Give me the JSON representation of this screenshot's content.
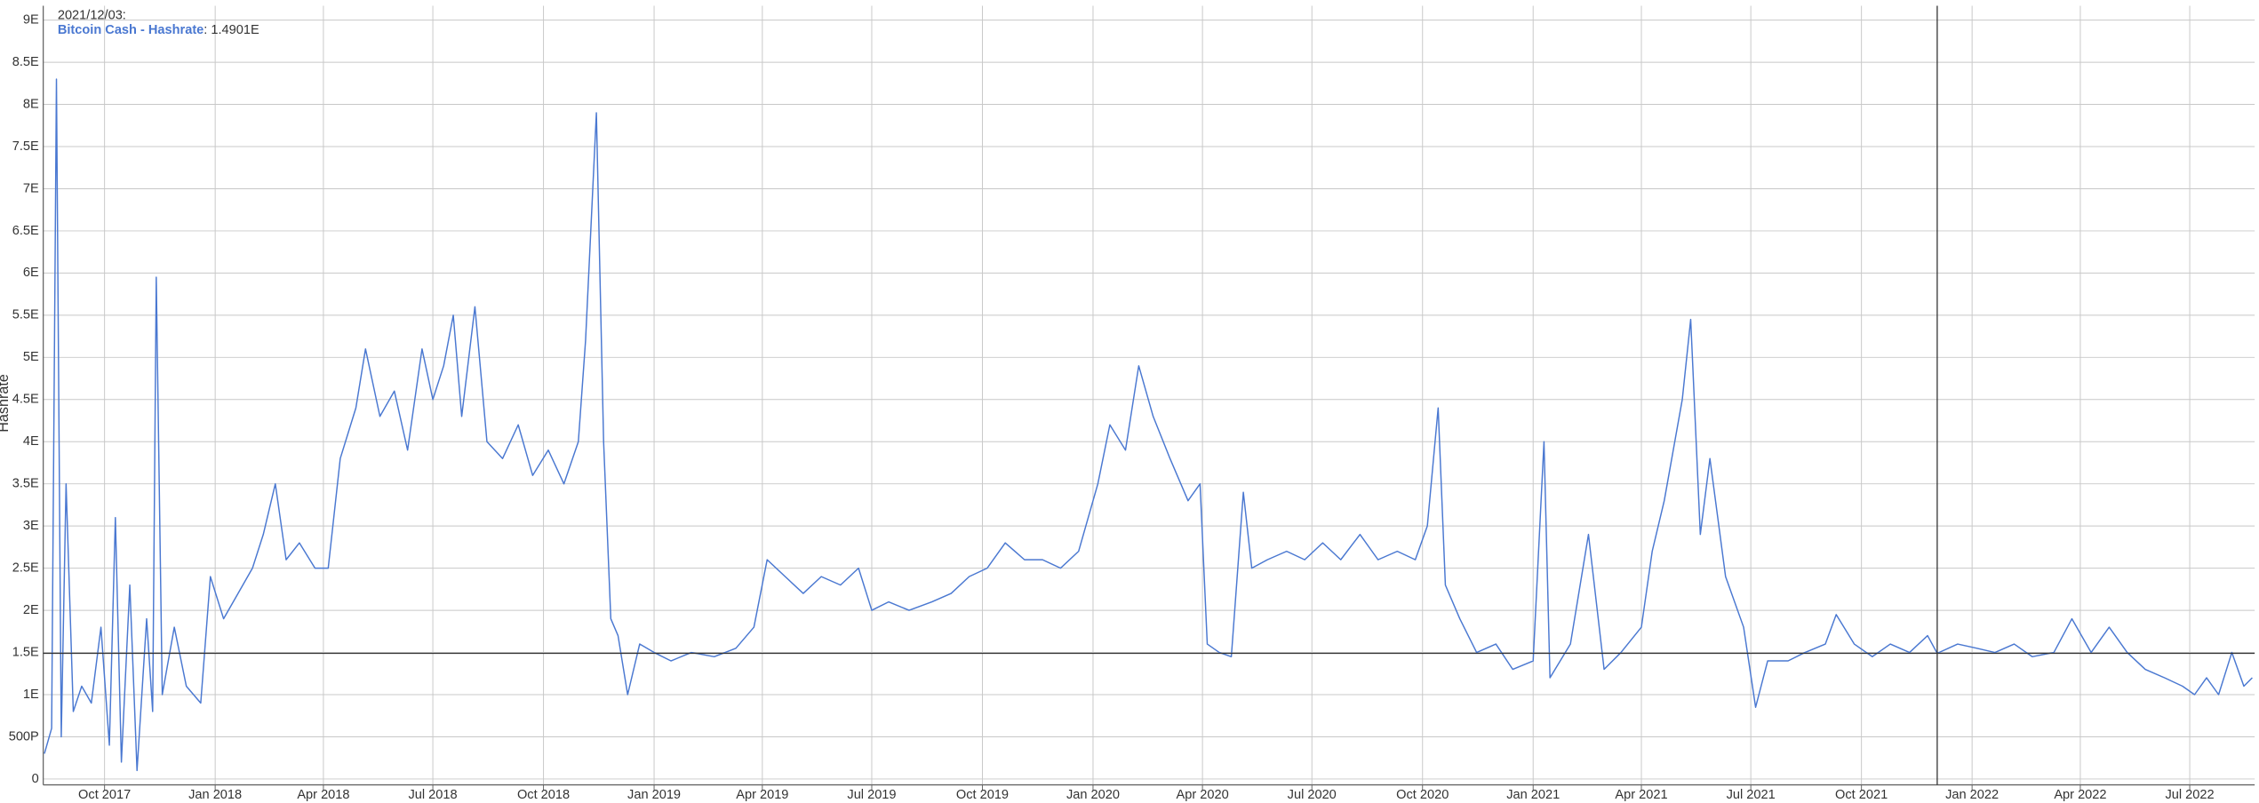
{
  "chart_data": {
    "type": "line",
    "y_label": "Hashrate",
    "x": [
      "2017/08/12",
      "2017/08/18",
      "2017/08/22",
      "2017/08/26",
      "2017/08/30",
      "2017/09/05",
      "2017/09/12",
      "2017/09/20",
      "2017/09/28",
      "2017/10/05",
      "2017/10/10",
      "2017/10/15",
      "2017/10/22",
      "2017/10/28",
      "2017/11/05",
      "2017/11/10",
      "2017/11/13",
      "2017/11/18",
      "2017/11/28",
      "2017/12/08",
      "2017/12/20",
      "2017/12/28",
      "2018/01/08",
      "2018/01/20",
      "2018/02/01",
      "2018/02/10",
      "2018/02/20",
      "2018/03/01",
      "2018/03/12",
      "2018/03/25",
      "2018/04/05",
      "2018/04/15",
      "2018/04/28",
      "2018/05/06",
      "2018/05/18",
      "2018/05/30",
      "2018/06/10",
      "2018/06/22",
      "2018/07/01",
      "2018/07/10",
      "2018/07/18",
      "2018/07/25",
      "2018/08/05",
      "2018/08/15",
      "2018/08/28",
      "2018/09/10",
      "2018/09/22",
      "2018/10/05",
      "2018/10/18",
      "2018/10/30",
      "2018/11/05",
      "2018/11/14",
      "2018/11/20",
      "2018/11/26",
      "2018/12/02",
      "2018/12/10",
      "2018/12/20",
      "2019/01/01",
      "2019/01/15",
      "2019/02/01",
      "2019/02/20",
      "2019/03/10",
      "2019/03/25",
      "2019/04/05",
      "2019/04/20",
      "2019/05/05",
      "2019/05/20",
      "2019/06/05",
      "2019/06/20",
      "2019/07/01",
      "2019/07/15",
      "2019/08/01",
      "2019/08/20",
      "2019/09/05",
      "2019/09/20",
      "2019/10/05",
      "2019/10/20",
      "2019/11/05",
      "2019/11/20",
      "2019/12/05",
      "2019/12/20",
      "2020/01/05",
      "2020/01/15",
      "2020/01/28",
      "2020/02/08",
      "2020/02/20",
      "2020/03/05",
      "2020/03/20",
      "2020/03/30",
      "2020/04/05",
      "2020/04/15",
      "2020/04/25",
      "2020/05/05",
      "2020/05/12",
      "2020/05/25",
      "2020/06/10",
      "2020/06/25",
      "2020/07/10",
      "2020/07/25",
      "2020/08/10",
      "2020/08/25",
      "2020/09/10",
      "2020/09/25",
      "2020/10/05",
      "2020/10/14",
      "2020/10/20",
      "2020/11/01",
      "2020/11/15",
      "2020/12/01",
      "2020/12/15",
      "2021/01/01",
      "2021/01/10",
      "2021/01/15",
      "2021/02/01",
      "2021/02/16",
      "2021/03/01",
      "2021/03/15",
      "2021/04/01",
      "2021/04/10",
      "2021/04/20",
      "2021/05/05",
      "2021/05/12",
      "2021/05/20",
      "2021/05/28",
      "2021/06/10",
      "2021/06/25",
      "2021/07/05",
      "2021/07/15",
      "2021/08/01",
      "2021/08/15",
      "2021/09/01",
      "2021/09/10",
      "2021/09/25",
      "2021/10/10",
      "2021/10/25",
      "2021/11/10",
      "2021/11/25",
      "2021/12/03",
      "2021/12/20",
      "2022/01/05",
      "2022/01/20",
      "2022/02/05",
      "2022/02/20",
      "2022/03/10",
      "2022/03/25",
      "2022/04/10",
      "2022/04/25",
      "2022/05/10",
      "2022/05/25",
      "2022/06/10",
      "2022/06/25",
      "2022/07/05",
      "2022/07/15",
      "2022/07/25",
      "2022/08/05",
      "2022/08/15",
      "2022/08/22"
    ],
    "series": [
      {
        "name": "Bitcoin Cash - Hashrate",
        "color": "#4a78d1",
        "values": [
          0.3,
          0.6,
          8.3,
          0.5,
          3.5,
          0.8,
          1.1,
          0.9,
          1.8,
          0.4,
          3.1,
          0.2,
          2.3,
          0.1,
          1.9,
          0.8,
          5.95,
          1.0,
          1.8,
          1.1,
          0.9,
          2.4,
          1.9,
          2.2,
          2.5,
          2.9,
          3.5,
          2.6,
          2.8,
          2.5,
          2.5,
          3.8,
          4.4,
          5.1,
          4.3,
          4.6,
          3.9,
          5.1,
          4.5,
          4.9,
          5.5,
          4.3,
          5.6,
          4.0,
          3.8,
          4.2,
          3.6,
          3.9,
          3.5,
          4.0,
          5.2,
          7.9,
          4.0,
          1.9,
          1.7,
          1.0,
          1.6,
          1.5,
          1.4,
          1.5,
          1.45,
          1.55,
          1.8,
          2.6,
          2.4,
          2.2,
          2.4,
          2.3,
          2.5,
          2.0,
          2.1,
          2.0,
          2.1,
          2.2,
          2.4,
          2.5,
          2.8,
          2.6,
          2.6,
          2.5,
          2.7,
          3.5,
          4.2,
          3.9,
          4.9,
          4.3,
          3.8,
          3.3,
          3.5,
          1.6,
          1.5,
          1.45,
          3.4,
          2.5,
          2.6,
          2.7,
          2.6,
          2.8,
          2.6,
          2.9,
          2.6,
          2.7,
          2.6,
          3.0,
          4.4,
          2.3,
          1.9,
          1.5,
          1.6,
          1.3,
          1.4,
          4.0,
          1.2,
          1.6,
          2.9,
          1.3,
          1.5,
          1.8,
          2.7,
          3.3,
          4.5,
          5.45,
          2.9,
          3.8,
          2.4,
          1.8,
          0.85,
          1.4,
          1.4,
          1.5,
          1.6,
          1.95,
          1.6,
          1.45,
          1.6,
          1.5,
          1.7,
          1.4901,
          1.6,
          1.55,
          1.5,
          1.6,
          1.45,
          1.5,
          1.9,
          1.5,
          1.8,
          1.5,
          1.3,
          1.2,
          1.1,
          1.0,
          1.2,
          1.0,
          1.5,
          1.1,
          1.2
        ]
      }
    ],
    "xlim": [
      "2017/08/11",
      "2022/08/24"
    ],
    "xticks": [
      {
        "value": "2017/10/01",
        "label": "Oct 2017"
      },
      {
        "value": "2018/01/01",
        "label": "Jan 2018"
      },
      {
        "value": "2018/04/01",
        "label": "Apr 2018"
      },
      {
        "value": "2018/07/01",
        "label": "Jul 2018"
      },
      {
        "value": "2018/10/01",
        "label": "Oct 2018"
      },
      {
        "value": "2019/01/01",
        "label": "Jan 2019"
      },
      {
        "value": "2019/04/01",
        "label": "Apr 2019"
      },
      {
        "value": "2019/07/01",
        "label": "Jul 2019"
      },
      {
        "value": "2019/10/01",
        "label": "Oct 2019"
      },
      {
        "value": "2020/01/01",
        "label": "Jan 2020"
      },
      {
        "value": "2020/04/01",
        "label": "Apr 2020"
      },
      {
        "value": "2020/07/01",
        "label": "Jul 2020"
      },
      {
        "value": "2020/10/01",
        "label": "Oct 2020"
      },
      {
        "value": "2021/01/01",
        "label": "Jan 2021"
      },
      {
        "value": "2021/04/01",
        "label": "Apr 2021"
      },
      {
        "value": "2021/07/01",
        "label": "Jul 2021"
      },
      {
        "value": "2021/10/01",
        "label": "Oct 2021"
      },
      {
        "value": "2022/01/01",
        "label": "Jan 2022"
      },
      {
        "value": "2022/04/01",
        "label": "Apr 2022"
      },
      {
        "value": "2022/07/01",
        "label": "Jul 2022"
      }
    ],
    "ylim": [
      -0.07,
      9.17
    ],
    "yticks": [
      0,
      {
        "value": 0.5,
        "label": "500P"
      },
      {
        "value": 1,
        "label": "1E"
      },
      {
        "value": 1.5,
        "label": "1.5E"
      },
      {
        "value": 2,
        "label": "2E"
      },
      {
        "value": 2.5,
        "label": "2.5E"
      },
      {
        "value": 3,
        "label": "3E"
      },
      {
        "value": 3.5,
        "label": "3.5E"
      },
      {
        "value": 4,
        "label": "4E"
      },
      {
        "value": 4.5,
        "label": "4.5E"
      },
      {
        "value": 5,
        "label": "5E"
      },
      {
        "value": 5.5,
        "label": "5.5E"
      },
      {
        "value": 6,
        "label": "6E"
      },
      {
        "value": 6.5,
        "label": "6.5E"
      },
      {
        "value": 7,
        "label": "7E"
      },
      {
        "value": 7.5,
        "label": "7.5E"
      },
      {
        "value": 8,
        "label": "8E"
      },
      {
        "value": 8.5,
        "label": "8.5E"
      },
      {
        "value": 9,
        "label": "9E"
      }
    ],
    "grid": true,
    "crosshair": {
      "x": "2021/12/03",
      "y": 1.4901,
      "date_label": "2021/12/03:",
      "value_label": ": 1.4901E"
    }
  }
}
